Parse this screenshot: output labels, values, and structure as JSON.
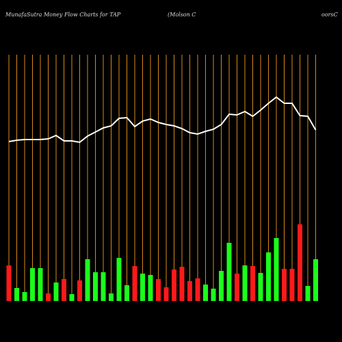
{
  "chart_data": {
    "type": "bar",
    "title": "MunafaSutra  Money Flow  Charts for TAP",
    "subtitle": "(Molson  C",
    "subtitle_tail": "oorsC",
    "categories": [
      null,
      null,
      null,
      null,
      null,
      null,
      null,
      null,
      null,
      null,
      null,
      null,
      null,
      null,
      null,
      null,
      null,
      null,
      null,
      null,
      null,
      null,
      null,
      null,
      null,
      null,
      null,
      null,
      null,
      null,
      null,
      null,
      null,
      null,
      null,
      null,
      null,
      null,
      null,
      null
    ],
    "series": [
      {
        "type": "bar",
        "colors": [
          "#ff1a1a",
          "#1aff1a"
        ],
        "directions": [
          "down",
          "up",
          "up",
          "up",
          "up",
          "down",
          "up",
          "down",
          "up",
          "down",
          "up",
          "up",
          "up",
          "up",
          "up",
          "up",
          "down",
          "up",
          "up",
          "down",
          "down",
          "down",
          "down",
          "down",
          "down",
          "up",
          "up",
          "up",
          "up",
          "down",
          "up",
          "down",
          "up",
          "up",
          "up",
          "down",
          "down",
          "down",
          "up",
          "up"
        ],
        "values": [
          52,
          19,
          13,
          48,
          48,
          11,
          27,
          32,
          10,
          30,
          61,
          42,
          42,
          11,
          63,
          23,
          51,
          40,
          38,
          32,
          20,
          46,
          50,
          29,
          33,
          24,
          18,
          44,
          85,
          40,
          52,
          51,
          41,
          71,
          92,
          47,
          47,
          112,
          22,
          61
        ]
      },
      {
        "type": "line",
        "color": "#ffffff",
        "values": [
          233,
          235,
          236,
          236,
          236,
          237,
          242,
          234,
          234,
          232,
          241,
          247,
          253,
          256,
          267,
          268,
          255,
          263,
          266,
          261,
          258,
          256,
          252,
          246,
          244,
          248,
          251,
          258,
          273,
          272,
          277,
          270,
          279,
          289,
          298,
          289,
          289,
          271,
          270,
          250
        ]
      }
    ],
    "ylim": [
      0,
      360
    ],
    "gridline_color": "#d98a1a"
  }
}
